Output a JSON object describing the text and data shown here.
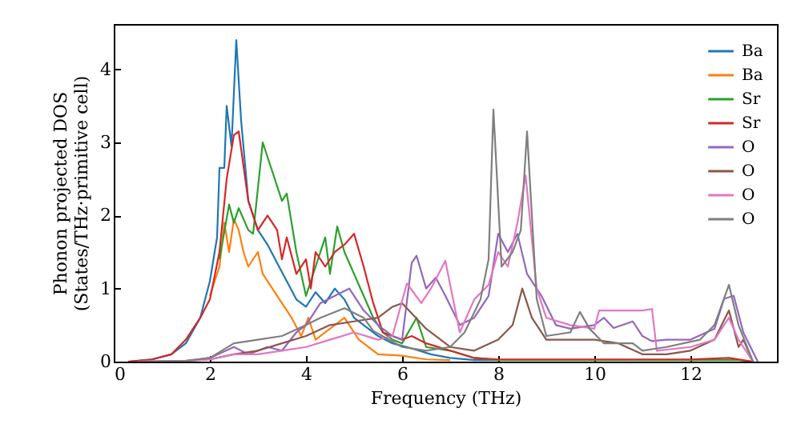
{
  "chart_data": {
    "type": "line",
    "xlabel": "Frequency (THz)",
    "ylabel": "Phonon projected DOS\n(States/THz·primitive cell)",
    "xlim": [
      0,
      13.8
    ],
    "ylim": [
      0,
      4.62
    ],
    "xticks": [
      0,
      2,
      4,
      6,
      8,
      10,
      12
    ],
    "yticks": [
      0,
      1,
      2,
      3,
      4
    ],
    "legend": "top right",
    "marker": "none",
    "line_style": "solid",
    "grid": false,
    "series": [
      {
        "name": "Ba",
        "color": "#1f77b4",
        "x": [
          0.3,
          0.8,
          1.2,
          1.5,
          1.8,
          2.0,
          2.15,
          2.2,
          2.3,
          2.35,
          2.45,
          2.55,
          2.65,
          2.8,
          3.0,
          3.2,
          3.4,
          3.6,
          3.8,
          4.0,
          4.2,
          4.4,
          4.6,
          4.8,
          5.0,
          5.2,
          5.5,
          5.8,
          6.2,
          6.6,
          7.0,
          7.5,
          8.0
        ],
        "values": [
          0,
          0.03,
          0.1,
          0.25,
          0.6,
          1.1,
          1.7,
          2.65,
          2.65,
          3.5,
          2.95,
          4.4,
          3.3,
          2.2,
          1.8,
          1.6,
          1.35,
          1.1,
          0.85,
          0.75,
          0.95,
          0.8,
          1.0,
          0.85,
          0.6,
          0.5,
          0.35,
          0.25,
          0.18,
          0.1,
          0.05,
          0.02,
          0.02
        ]
      },
      {
        "name": "Ba",
        "color": "#ff7f0e",
        "x": [
          2.0,
          2.2,
          2.3,
          2.4,
          2.5,
          2.6,
          2.7,
          2.8,
          3.0,
          3.1,
          3.3,
          3.5,
          3.7,
          3.9,
          4.05,
          4.2,
          4.4,
          4.6,
          4.8,
          5.1,
          5.5,
          6.0,
          6.5,
          7.0
        ],
        "values": [
          0.9,
          1.3,
          1.9,
          1.5,
          1.95,
          1.8,
          1.5,
          1.3,
          1.5,
          1.2,
          1.0,
          0.8,
          0.6,
          0.35,
          0.6,
          0.3,
          0.4,
          0.5,
          0.6,
          0.3,
          0.1,
          0.08,
          0.03,
          0.02
        ]
      },
      {
        "name": "Sr",
        "color": "#2ca02c",
        "x": [
          2.2,
          2.4,
          2.5,
          2.6,
          2.8,
          2.9,
          3.1,
          3.3,
          3.5,
          3.6,
          3.8,
          3.9,
          4.0,
          4.2,
          4.4,
          4.5,
          4.65,
          4.8,
          5.0,
          5.2,
          5.4,
          5.6,
          5.8,
          6.0,
          6.3,
          6.5,
          7.0,
          7.5,
          8,
          9,
          10,
          11,
          12,
          13,
          13.3
        ],
        "values": [
          1.4,
          2.15,
          1.9,
          2.1,
          1.8,
          1.75,
          3.0,
          2.6,
          2.2,
          2.3,
          1.5,
          1.2,
          0.9,
          1.3,
          1.7,
          1.2,
          1.85,
          1.5,
          1.2,
          0.9,
          0.6,
          0.4,
          0.3,
          0.25,
          0.6,
          0.2,
          0.15,
          0.05,
          0.02,
          0.02,
          0.02,
          0.02,
          0.02,
          0.02,
          0
        ]
      },
      {
        "name": "Sr",
        "color": "#d62728",
        "x": [
          0.3,
          0.8,
          1.2,
          1.5,
          1.8,
          2.0,
          2.2,
          2.35,
          2.5,
          2.6,
          2.8,
          3.0,
          3.2,
          3.4,
          3.5,
          3.6,
          3.8,
          4.0,
          4.1,
          4.2,
          4.4,
          4.6,
          4.8,
          5.0,
          5.2,
          5.4,
          5.6,
          6.0,
          6.2,
          6.5,
          7.0,
          7.5,
          8,
          9,
          10,
          11,
          12,
          12.8,
          13.3
        ],
        "values": [
          0,
          0.03,
          0.1,
          0.3,
          0.6,
          0.85,
          1.5,
          2.5,
          3.1,
          3.15,
          2.2,
          1.8,
          2.0,
          1.8,
          1.4,
          1.7,
          1.2,
          1.4,
          1.0,
          1.5,
          1.3,
          1.5,
          1.6,
          1.75,
          1.3,
          0.8,
          0.4,
          0.3,
          0.35,
          0.25,
          0.15,
          0.05,
          0.03,
          0.03,
          0.03,
          0.03,
          0.03,
          0.05,
          0
        ]
      },
      {
        "name": "O",
        "color": "#9467bd",
        "x": [
          0.5,
          1.5,
          2.0,
          2.5,
          2.8,
          3.2,
          3.5,
          3.8,
          4.0,
          4.3,
          4.6,
          4.9,
          5.2,
          5.5,
          5.8,
          6.0,
          6.2,
          6.3,
          6.5,
          6.7,
          6.9,
          7.2,
          7.5,
          7.8,
          8.0,
          8.2,
          8.4,
          8.6,
          8.9,
          9.2,
          9.5,
          10.0,
          10.2,
          10.4,
          10.8,
          11.0,
          11.2,
          11.5,
          12.0,
          12.5,
          12.7,
          12.9,
          13.1,
          13.4
        ],
        "values": [
          0,
          0.01,
          0.05,
          0.2,
          0.1,
          0.2,
          0.15,
          0.4,
          0.5,
          0.8,
          0.9,
          1.0,
          0.7,
          0.5,
          0.35,
          0.3,
          1.35,
          1.45,
          1.0,
          1.15,
          0.9,
          0.5,
          0.6,
          0.9,
          1.75,
          1.5,
          1.75,
          1.2,
          0.9,
          0.5,
          0.45,
          0.5,
          0.6,
          0.46,
          0.55,
          0.35,
          0.28,
          0.3,
          0.3,
          0.45,
          0.86,
          0.9,
          0.4,
          0
        ]
      },
      {
        "name": "O",
        "color": "#8c564b",
        "x": [
          0.5,
          1.5,
          2.0,
          2.5,
          3.0,
          3.5,
          4.0,
          4.5,
          5.0,
          5.5,
          5.8,
          6.0,
          6.5,
          7.0,
          7.5,
          8.0,
          8.3,
          8.5,
          8.7,
          8.9,
          9.0,
          9.5,
          10.0,
          10.5,
          11.0,
          11.5,
          12.0,
          12.5,
          12.8,
          13.0,
          13.1,
          13.3
        ],
        "values": [
          0,
          0.01,
          0.03,
          0.1,
          0.15,
          0.25,
          0.35,
          0.5,
          0.55,
          0.6,
          0.75,
          0.8,
          0.45,
          0.2,
          0.15,
          0.3,
          0.5,
          1.0,
          0.6,
          0.4,
          0.3,
          0.3,
          0.3,
          0.25,
          0.1,
          0.1,
          0.15,
          0.3,
          0.7,
          0.2,
          0.3,
          0
        ]
      },
      {
        "name": "O",
        "color": "#e377c2",
        "x": [
          0.5,
          1.5,
          2.0,
          2.5,
          3.0,
          3.5,
          4.0,
          4.5,
          5.0,
          5.5,
          5.8,
          6.1,
          6.4,
          6.6,
          6.9,
          7.2,
          7.5,
          7.8,
          8.0,
          8.2,
          8.4,
          8.57,
          8.8,
          9.0,
          9.5,
          10.0,
          10.1,
          10.5,
          11.0,
          11.2,
          11.3,
          12.0,
          12.5,
          12.8,
          13.0,
          13.3
        ],
        "values": [
          0,
          0.01,
          0.03,
          0.1,
          0.1,
          0.15,
          0.2,
          0.3,
          0.4,
          0.3,
          0.35,
          1.07,
          0.8,
          1.0,
          1.38,
          0.4,
          0.85,
          1.05,
          1.5,
          1.3,
          1.9,
          2.55,
          1.0,
          0.6,
          0.5,
          0.45,
          0.7,
          0.7,
          0.7,
          0.72,
          0.15,
          0.2,
          0.3,
          0.6,
          0.3,
          0
        ]
      },
      {
        "name": "O",
        "color": "#7f7f7f",
        "x": [
          0.5,
          1.5,
          2.0,
          2.5,
          3.0,
          3.5,
          4.0,
          4.3,
          4.8,
          5.2,
          5.4,
          6.0,
          6.5,
          7.0,
          7.3,
          7.63,
          7.8,
          7.9,
          8.07,
          8.3,
          8.47,
          8.6,
          8.8,
          9.0,
          9.5,
          9.7,
          9.9,
          10.2,
          10.8,
          11.0,
          11.5,
          12.2,
          12.5,
          12.8,
          13.0,
          13.3
        ],
        "values": [
          0,
          0.01,
          0.05,
          0.25,
          0.3,
          0.35,
          0.5,
          0.6,
          0.73,
          0.6,
          0.42,
          0.2,
          0.15,
          0.2,
          0.4,
          0.85,
          1.4,
          3.45,
          1.3,
          1.5,
          1.8,
          3.15,
          0.86,
          0.35,
          0.4,
          0.68,
          0.45,
          0.25,
          0.25,
          0.15,
          0.2,
          0.3,
          0.5,
          1.05,
          0.5,
          0
        ]
      }
    ]
  }
}
